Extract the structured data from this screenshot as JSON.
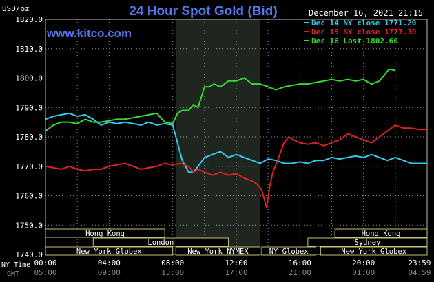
{
  "chart_data": {
    "type": "line",
    "title": "24 Hour Spot Gold (Bid)",
    "site": "www.kitco.com",
    "datetime": "December 16, 2021 21:15",
    "ylabel": "USD/oz",
    "ylim": [
      1740,
      1820
    ],
    "y_ticks": [
      "1820.0",
      "1810.0",
      "1800.0",
      "1790.0",
      "1780.0",
      "1770.0",
      "1760.0",
      "1750.0",
      "1740.0"
    ],
    "x_ticks_ny": [
      "00:00",
      "04:00",
      "08:00",
      "12:00",
      "16:00",
      "20:00",
      "23:59"
    ],
    "x_ticks_gmt": [
      "05:00",
      "09:00",
      "13:00",
      "17:00",
      "21:00",
      "01:00",
      "04:59"
    ],
    "row_label_ny": "NY Time",
    "row_label_gmt": "GMT",
    "legend": [
      {
        "label": "Dec 14 NY close 1771.20",
        "color": "#33ccee"
      },
      {
        "label": "Dec 15 NY close 1777.30",
        "color": "#dd2222"
      },
      {
        "label": "Dec 16 Last 1802.60",
        "color": "#33dd33"
      }
    ],
    "sessions": [
      {
        "name": "Hong Kong",
        "start": 0,
        "end": 7.5,
        "row": 0
      },
      {
        "name": "Hong Kong",
        "start": 18.2,
        "end": 24,
        "row": 0
      },
      {
        "name": "London",
        "start": 3.0,
        "end": 11.5,
        "row": 1
      },
      {
        "name": "Sydney",
        "start": 16.5,
        "end": 24,
        "row": 1
      },
      {
        "name": "New York Globex",
        "start": 0,
        "end": 8.0,
        "row": 2
      },
      {
        "name": "New York NYMEX",
        "start": 8.2,
        "end": 13.5,
        "row": 2
      },
      {
        "name": "NY Globex",
        "start": 13.6,
        "end": 17.0,
        "row": 2
      },
      {
        "name": "New York Globex",
        "start": 17.3,
        "end": 24,
        "row": 2
      }
    ],
    "shaded_range": [
      8.2,
      13.5
    ],
    "series": [
      {
        "name": "Dec 14",
        "color": "#33ccee",
        "x": [
          0,
          0.5,
          1,
          1.5,
          2,
          2.5,
          3,
          3.5,
          4,
          4.5,
          5,
          5.5,
          6,
          6.5,
          7,
          7.5,
          8,
          8.3,
          8.6,
          9,
          9.3,
          9.6,
          10,
          10.5,
          11,
          11.5,
          12,
          12.5,
          13,
          13.5,
          14,
          14.5,
          15,
          15.5,
          16,
          16.5,
          17,
          17.5,
          18,
          18.5,
          19,
          19.5,
          20,
          20.5,
          21,
          21.5,
          22,
          22.5,
          23,
          23.5,
          23.99
        ],
        "values": [
          1786,
          1787,
          1787.5,
          1788,
          1787,
          1787.5,
          1786,
          1784,
          1785,
          1784.5,
          1785,
          1784.5,
          1784,
          1785,
          1784,
          1784.5,
          1784,
          1778,
          1772,
          1768,
          1768,
          1770,
          1773,
          1774,
          1775,
          1773,
          1774,
          1773,
          1772,
          1771,
          1772.5,
          1772,
          1771,
          1771,
          1771.5,
          1771,
          1772,
          1772,
          1773,
          1772.5,
          1773,
          1773.5,
          1773,
          1774,
          1773,
          1772,
          1773,
          1772,
          1771,
          1771,
          1771
        ]
      },
      {
        "name": "Dec 15",
        "color": "#dd2222",
        "x": [
          0,
          0.5,
          1,
          1.5,
          2,
          2.5,
          3,
          3.5,
          4,
          4.5,
          5,
          5.5,
          6,
          6.5,
          7,
          7.5,
          8,
          8.5,
          9,
          9.3,
          9.6,
          10,
          10.5,
          11,
          11.5,
          12,
          12.5,
          13,
          13.3,
          13.6,
          13.9,
          14.1,
          14.3,
          14.6,
          15,
          15.3,
          15.6,
          16,
          16.5,
          17,
          17.5,
          18,
          18.5,
          19,
          19.5,
          20,
          20.5,
          21,
          21.5,
          22,
          22.5,
          23,
          23.5,
          23.99
        ],
        "values": [
          1770,
          1769.5,
          1769,
          1770,
          1769,
          1768.5,
          1769,
          1769,
          1770,
          1770.5,
          1771,
          1770,
          1769,
          1769.5,
          1770,
          1771,
          1770.5,
          1771,
          1770,
          1768,
          1769,
          1768,
          1767,
          1768,
          1767,
          1767.5,
          1766,
          1765,
          1764,
          1762,
          1756,
          1763,
          1768,
          1772,
          1778,
          1780,
          1779,
          1778,
          1777.5,
          1778,
          1777,
          1778,
          1779,
          1781,
          1780,
          1779,
          1778,
          1780,
          1782,
          1784,
          1783,
          1783,
          1782.5,
          1782.5
        ]
      },
      {
        "name": "Dec 16",
        "color": "#33dd33",
        "x": [
          0,
          0.5,
          1,
          1.5,
          2,
          2.5,
          3,
          3.5,
          4,
          4.5,
          5,
          5.5,
          6,
          6.5,
          7,
          7.5,
          8,
          8.3,
          8.6,
          9,
          9.3,
          9.6,
          10,
          10.3,
          10.6,
          11,
          11.5,
          12,
          12.5,
          13,
          13.5,
          14,
          14.5,
          15,
          15.5,
          16,
          16.5,
          17,
          17.5,
          18,
          18.5,
          19,
          19.5,
          20,
          20.5,
          21,
          21.3,
          21.6,
          22
        ],
        "values": [
          1782,
          1784,
          1785,
          1785,
          1784.5,
          1786,
          1785,
          1785,
          1785.5,
          1786,
          1786,
          1786.5,
          1787,
          1787.5,
          1788,
          1785,
          1784.5,
          1788,
          1789,
          1789,
          1791,
          1790,
          1797,
          1797,
          1798,
          1797,
          1799,
          1799,
          1800,
          1798,
          1798,
          1797,
          1796,
          1797,
          1797.5,
          1798,
          1798,
          1798.5,
          1799,
          1799.5,
          1799,
          1799.5,
          1799,
          1799.5,
          1798,
          1799,
          1801,
          1803,
          1802.6
        ]
      }
    ]
  }
}
